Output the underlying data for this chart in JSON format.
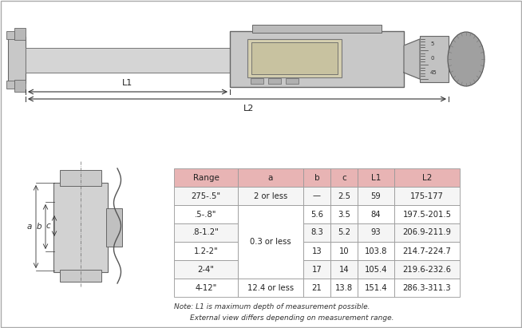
{
  "table_headers": [
    "Range",
    "a",
    "b",
    "c",
    "L1",
    "L2"
  ],
  "table_rows": [
    [
      "275-.5\"",
      "2 or less",
      "—",
      "2.5",
      "59",
      "175-177"
    ],
    [
      ".5-.8\"",
      "",
      "5.6",
      "3.5",
      "84",
      "197.5-201.5"
    ],
    [
      ".8-1.2\"",
      "0.3 or less",
      "8.3",
      "5.2",
      "93",
      "206.9-211.9"
    ],
    [
      "1.2-2\"",
      "",
      "13",
      "10",
      "103.8",
      "214.7-224.7"
    ],
    [
      "2-4\"",
      "",
      "17",
      "14",
      "105.4",
      "219.6-232.6"
    ],
    [
      "4-12\"",
      "12.4 or less",
      "21",
      "13.8",
      "151.4",
      "286.3-311.3"
    ]
  ],
  "note_lines": [
    "Note: L1 is maximum depth of measurement possible.",
    "External view differs depending on measurement range."
  ],
  "header_bg": "#e8b4b4",
  "even_bg": "#f5f5f5",
  "odd_bg": "#ffffff",
  "bg_color": "#ffffff"
}
